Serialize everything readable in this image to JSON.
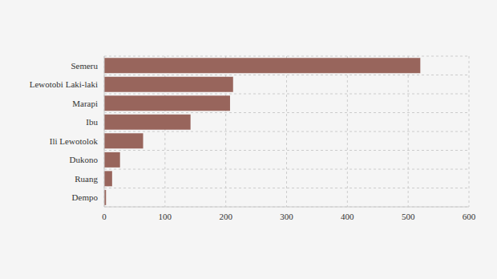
{
  "chart_data": {
    "type": "bar",
    "orientation": "horizontal",
    "categories": [
      "Semeru",
      "Lewotobi Laki-laki",
      "Marapi",
      "Ibu",
      "Ili Lewotolok",
      "Dukono",
      "Ruang",
      "Dempo"
    ],
    "values": [
      520,
      212,
      207,
      142,
      64,
      26,
      13,
      3
    ],
    "color": "#98655c",
    "xlim": [
      0,
      600
    ],
    "xticks": [
      0,
      100,
      200,
      300,
      400,
      500,
      600
    ],
    "grid": true
  }
}
